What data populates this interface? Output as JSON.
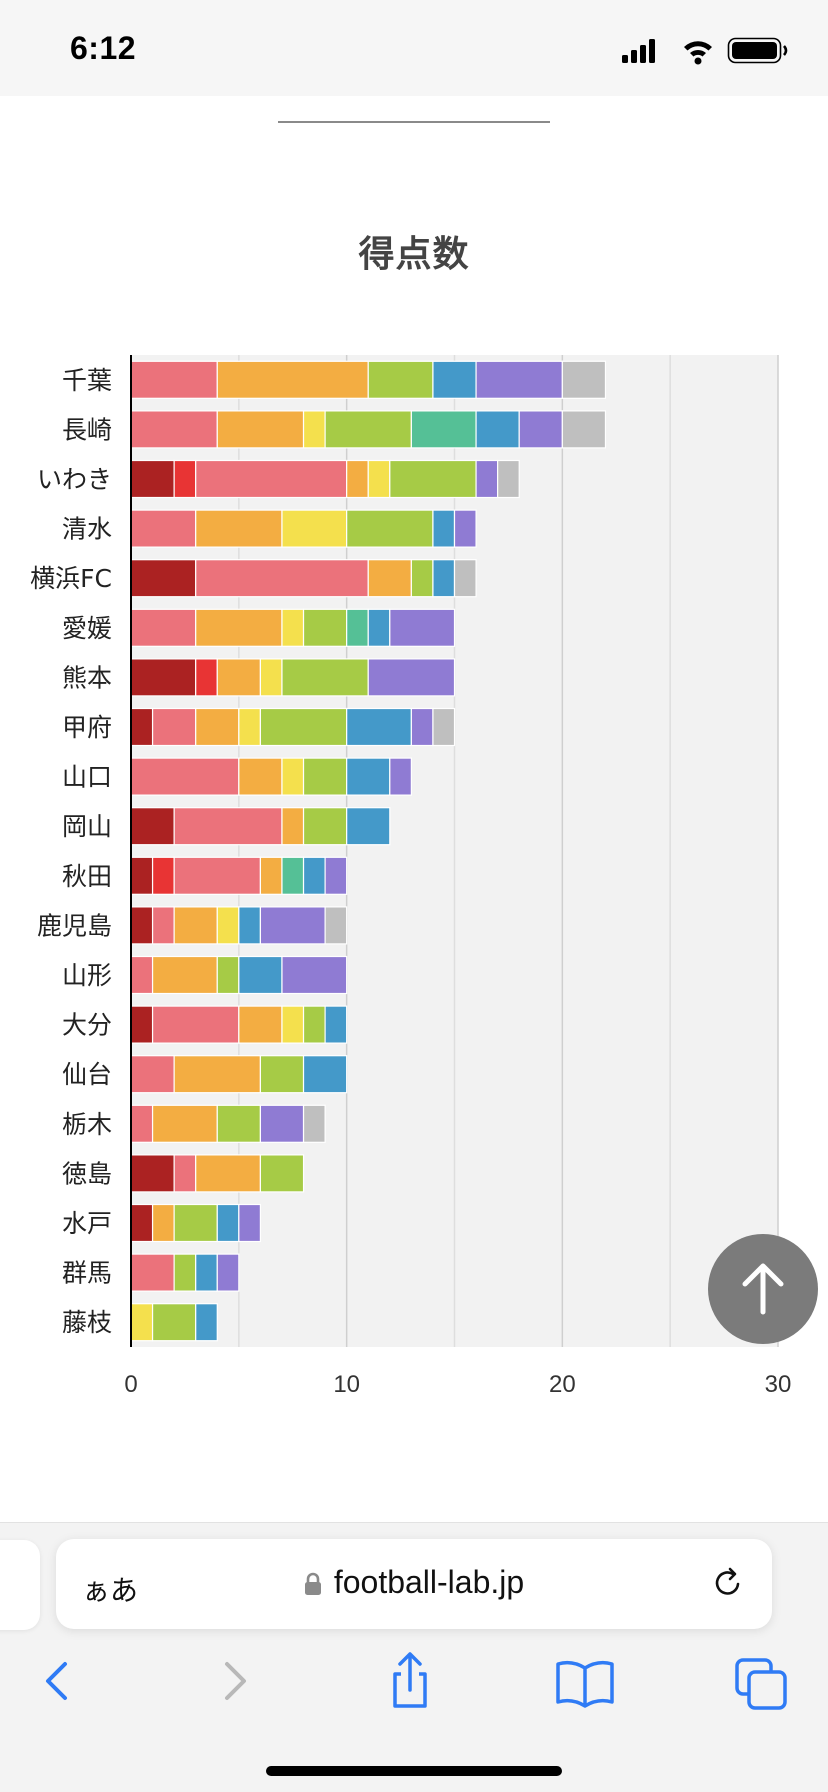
{
  "status_bar": {
    "time": "6:12"
  },
  "chart_data": {
    "type": "bar",
    "orientation": "horizontal",
    "stacked": true,
    "title": "得点数",
    "categories": [
      "千葉",
      "長崎",
      "いわき",
      "清水",
      "横浜FC",
      "愛媛",
      "熊本",
      "甲府",
      "山口",
      "岡山",
      "秋田",
      "鹿児島",
      "山形",
      "大分",
      "仙台",
      "栃木",
      "徳島",
      "水戸",
      "群馬",
      "藤枝"
    ],
    "xlim": [
      0,
      30
    ],
    "xticks": [
      0,
      10,
      20,
      30
    ],
    "grid": true,
    "series": [
      {
        "color": "#ab2222",
        "values": [
          0,
          0,
          2,
          0,
          3,
          0,
          3,
          1,
          0,
          2,
          1,
          1,
          0,
          1,
          0,
          0,
          2,
          1,
          0,
          0
        ]
      },
      {
        "color": "#e83434",
        "values": [
          0,
          0,
          1,
          0,
          0,
          0,
          1,
          0,
          0,
          0,
          1,
          0,
          0,
          0,
          0,
          0,
          0,
          0,
          0,
          0
        ]
      },
      {
        "color": "#eb727b",
        "values": [
          4,
          4,
          7,
          3,
          8,
          3,
          0,
          2,
          5,
          5,
          4,
          1,
          1,
          4,
          2,
          1,
          1,
          0,
          2,
          0
        ]
      },
      {
        "color": "#f3ad42",
        "values": [
          7,
          4,
          1,
          4,
          2,
          4,
          2,
          2,
          2,
          1,
          1,
          2,
          3,
          2,
          4,
          3,
          3,
          1,
          0,
          0
        ]
      },
      {
        "color": "#f4e04d",
        "values": [
          0,
          1,
          1,
          3,
          0,
          1,
          1,
          1,
          1,
          0,
          0,
          1,
          0,
          1,
          0,
          0,
          0,
          0,
          0,
          1
        ]
      },
      {
        "color": "#a6cb46",
        "values": [
          3,
          4,
          4,
          4,
          1,
          2,
          4,
          4,
          2,
          2,
          0,
          0,
          1,
          1,
          2,
          2,
          2,
          2,
          1,
          2
        ]
      },
      {
        "color": "#55c096",
        "values": [
          0,
          3,
          0,
          0,
          0,
          1,
          0,
          0,
          0,
          0,
          1,
          0,
          0,
          0,
          0,
          0,
          0,
          0,
          0,
          0
        ]
      },
      {
        "color": "#4499c9",
        "values": [
          2,
          2,
          0,
          1,
          1,
          1,
          0,
          3,
          2,
          2,
          1,
          1,
          2,
          1,
          2,
          0,
          0,
          1,
          1,
          1
        ]
      },
      {
        "color": "#8f7bd3",
        "values": [
          4,
          2,
          1,
          1,
          0,
          3,
          4,
          1,
          1,
          0,
          1,
          3,
          3,
          0,
          0,
          2,
          0,
          1,
          1,
          0
        ]
      },
      {
        "color": "#bfbfbf",
        "values": [
          2,
          2,
          1,
          0,
          1,
          0,
          0,
          1,
          0,
          0,
          0,
          1,
          0,
          0,
          0,
          1,
          0,
          0,
          0,
          0
        ]
      }
    ]
  },
  "browser": {
    "aa_label": "ぁあ",
    "url": "football-lab.jp"
  },
  "icons": {
    "scroll_top": "arrow-up-icon",
    "lock": "lock-icon",
    "reload": "reload-icon",
    "back": "chevron-left-icon",
    "forward": "chevron-right-icon",
    "share": "share-icon",
    "bookmarks": "book-icon",
    "tabs": "tabs-icon"
  }
}
